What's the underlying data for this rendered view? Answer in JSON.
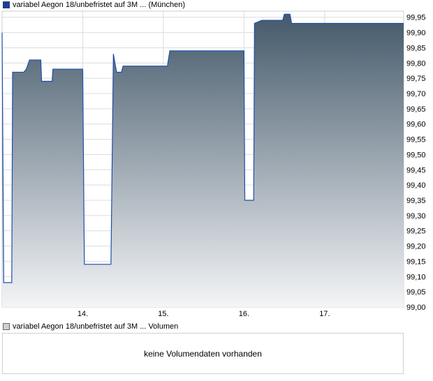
{
  "legend_price": "variabel Aegon 18/unbefristet auf 3M ... (München)",
  "legend_volume": "variabel Aegon 18/unbefristet auf 3M ... Volumen",
  "volume_message": "keine Volumendaten vorhanden",
  "colors": {
    "line": "#1f4fa8",
    "fill_top": "#44596a",
    "fill_bottom": "#f4f5f7",
    "grid": "#dcdcdc"
  },
  "chart_data": {
    "type": "area",
    "title": "",
    "xlabel": "",
    "ylabel": "",
    "ylim": [
      99.0,
      99.97
    ],
    "y_ticks": [
      "99,00",
      "99,05",
      "99,10",
      "99,15",
      "99,20",
      "99,25",
      "99,30",
      "99,35",
      "99,40",
      "99,45",
      "99,50",
      "99,55",
      "99,60",
      "99,65",
      "99,70",
      "99,75",
      "99,80",
      "99,85",
      "99,90",
      "99,95"
    ],
    "x_ticks": [
      {
        "label": "14.",
        "day": 14
      },
      {
        "label": "15.",
        "day": 15
      },
      {
        "label": "16.",
        "day": 16
      },
      {
        "label": "17.",
        "day": 17
      }
    ],
    "xlim_days": [
      13.0,
      17.98
    ],
    "grid": true,
    "series": [
      {
        "points": [
          [
            13.0,
            99.9
          ],
          [
            13.02,
            99.08
          ],
          [
            13.12,
            99.08
          ],
          [
            13.13,
            99.77
          ],
          [
            13.27,
            99.77
          ],
          [
            13.3,
            99.78
          ],
          [
            13.34,
            99.81
          ],
          [
            13.48,
            99.81
          ],
          [
            13.49,
            99.74
          ],
          [
            13.62,
            99.74
          ],
          [
            13.63,
            99.78
          ],
          [
            14.0,
            99.78
          ],
          [
            14.02,
            99.14
          ],
          [
            14.35,
            99.14
          ],
          [
            14.38,
            99.83
          ],
          [
            14.42,
            99.77
          ],
          [
            14.48,
            99.77
          ],
          [
            14.5,
            99.79
          ],
          [
            15.05,
            99.79
          ],
          [
            15.08,
            99.84
          ],
          [
            16.0,
            99.84
          ],
          [
            16.01,
            99.35
          ],
          [
            16.12,
            99.35
          ],
          [
            16.13,
            99.93
          ],
          [
            16.22,
            99.94
          ],
          [
            16.48,
            99.94
          ],
          [
            16.5,
            99.96
          ],
          [
            16.57,
            99.96
          ],
          [
            16.59,
            99.93
          ],
          [
            17.98,
            99.93
          ]
        ]
      }
    ]
  }
}
